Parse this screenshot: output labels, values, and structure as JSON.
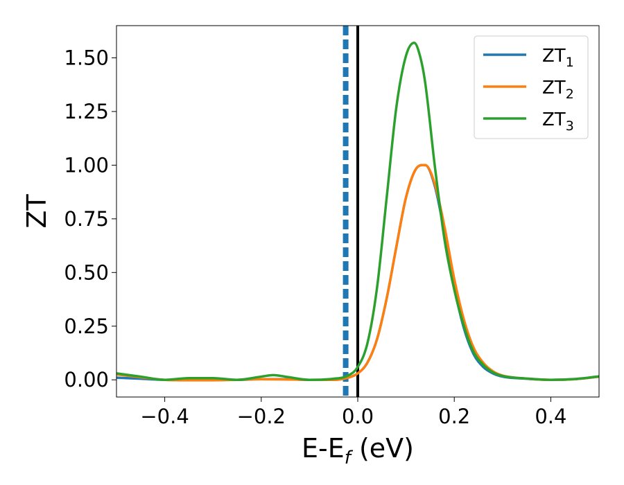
{
  "chart_data": {
    "type": "line",
    "xlabel": {
      "main": "E-E",
      "sub": "f",
      "unit": " (eV)"
    },
    "ylabel": "ZT",
    "xlim": [
      -0.5,
      0.5
    ],
    "ylim": [
      -0.08,
      1.65
    ],
    "x_ticks": [
      -0.4,
      -0.2,
      0.0,
      0.2,
      0.4
    ],
    "x_tick_labels": [
      "−0.4",
      "−0.2",
      "0.0",
      "0.2",
      "0.4"
    ],
    "y_ticks": [
      0.0,
      0.25,
      0.5,
      0.75,
      1.0,
      1.25,
      1.5
    ],
    "y_tick_labels": [
      "0.00",
      "0.25",
      "0.50",
      "0.75",
      "1.00",
      "1.25",
      "1.50"
    ],
    "grid": false,
    "legend_position": "top-right",
    "vlines": [
      {
        "x": 0.0,
        "style": "solid",
        "color": "#000000"
      },
      {
        "x": -0.025,
        "style": "dashed",
        "color": "#1f77b4"
      }
    ],
    "series": [
      {
        "name": "ZT",
        "sub": "1",
        "color": "#1f77b4",
        "x": [
          -0.5,
          -0.45,
          -0.4,
          -0.35,
          -0.3,
          -0.25,
          -0.2,
          -0.15,
          -0.1,
          -0.05,
          -0.02,
          0.0,
          0.02,
          0.04,
          0.06,
          0.08,
          0.1,
          0.12,
          0.14,
          0.16,
          0.18,
          0.2,
          0.22,
          0.24,
          0.26,
          0.28,
          0.3,
          0.35,
          0.4,
          0.45,
          0.5
        ],
        "y": [
          0.01,
          0.005,
          0.0,
          0.0,
          0.0,
          0.0,
          0.003,
          0.003,
          0.0,
          0.0,
          0.01,
          0.03,
          0.08,
          0.19,
          0.38,
          0.62,
          0.85,
          0.98,
          1.0,
          0.9,
          0.68,
          0.43,
          0.24,
          0.12,
          0.06,
          0.03,
          0.015,
          0.005,
          0.0,
          0.003,
          0.015
        ]
      },
      {
        "name": "ZT",
        "sub": "2",
        "color": "#ff7f0e",
        "x": [
          -0.5,
          -0.45,
          -0.4,
          -0.35,
          -0.3,
          -0.25,
          -0.2,
          -0.15,
          -0.1,
          -0.05,
          -0.02,
          0.0,
          0.02,
          0.04,
          0.06,
          0.08,
          0.1,
          0.12,
          0.14,
          0.16,
          0.18,
          0.2,
          0.22,
          0.24,
          0.26,
          0.28,
          0.3,
          0.35,
          0.4,
          0.45,
          0.5
        ],
        "y": [
          0.025,
          0.012,
          0.0,
          -0.002,
          -0.002,
          0.0,
          0.003,
          0.002,
          0.0,
          0.0,
          0.01,
          0.03,
          0.08,
          0.19,
          0.38,
          0.62,
          0.85,
          0.98,
          1.0,
          0.91,
          0.71,
          0.47,
          0.28,
          0.15,
          0.08,
          0.04,
          0.02,
          0.006,
          0.0,
          0.003,
          0.015
        ]
      },
      {
        "name": "ZT",
        "sub": "3",
        "color": "#2ca02c",
        "x": [
          -0.5,
          -0.45,
          -0.4,
          -0.35,
          -0.3,
          -0.25,
          -0.2,
          -0.175,
          -0.15,
          -0.1,
          -0.05,
          -0.02,
          0.0,
          0.02,
          0.04,
          0.06,
          0.08,
          0.1,
          0.117,
          0.13,
          0.14,
          0.16,
          0.18,
          0.2,
          0.22,
          0.24,
          0.26,
          0.28,
          0.3,
          0.35,
          0.4,
          0.45,
          0.5
        ],
        "y": [
          0.03,
          0.015,
          0.0,
          0.008,
          0.008,
          0.0,
          0.015,
          0.022,
          0.015,
          0.0,
          0.005,
          0.02,
          0.06,
          0.17,
          0.43,
          0.85,
          1.27,
          1.51,
          1.57,
          1.5,
          1.38,
          0.99,
          0.65,
          0.42,
          0.25,
          0.13,
          0.07,
          0.035,
          0.018,
          0.006,
          0.0,
          0.004,
          0.016
        ]
      }
    ]
  }
}
